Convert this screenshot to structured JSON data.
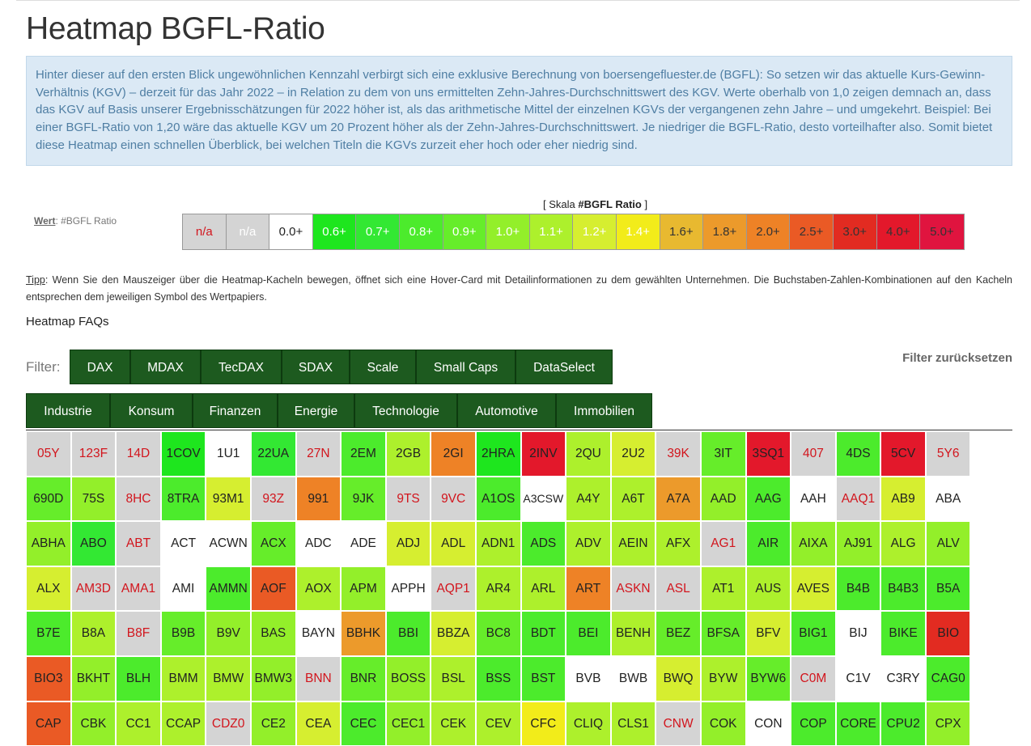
{
  "page": {
    "title": "Heatmap BGFL-Ratio",
    "info": "Hinter dieser auf den ersten Blick ungewöhnlichen Kennzahl verbirgt sich eine exklusive Berechnung von boersengefluester.de (BGFL): So setzen wir das aktuelle Kurs-Gewinn-Verhältnis (KGV) – derzeit für das Jahr 2022 – in Relation zu dem von uns ermittelten Zehn-Jahres-Durchschnittswert des KGV. Werte oberhalb von 1,0 zeigen demnach an, dass das KGV auf Basis unserer Ergebnisschätzungen für 2022 höher ist, als das arithmetische Mittel der einzelnen KGVs der vergangenen zehn Jahre – und umgekehrt. Beispiel: Bei einer BGFL-Ratio von 1,20 wäre das aktuelle KGV um 20 Prozent höher als der Zehn-Jahres-Durchschnittswert. Je niedriger die BGFL-Ratio, desto vorteilhafter also. Somit bietet diese Heatmap einen schnellen Überblick, bei welchen Titeln die KGVs zurzeit eher hoch oder eher niedrig sind."
  },
  "scale": {
    "prefix": "[ Skala ",
    "name": "#BGFL Ratio",
    "suffix": " ]",
    "wert_label": "Wert",
    "wert_value": ": #BGFL Ratio",
    "items": [
      {
        "label": "n/a",
        "bg": "#d4d4d4",
        "fg": "#d2151d"
      },
      {
        "label": "n/a",
        "bg": "#d4d4d4",
        "fg": "#ffffff"
      },
      {
        "label": "0.0+",
        "bg": "#ffffff",
        "fg": "#222222"
      },
      {
        "label": "0.6+",
        "bg": "#1ee61e",
        "fg": "#ffffff"
      },
      {
        "label": "0.7+",
        "bg": "#33e833",
        "fg": "#ffffff"
      },
      {
        "label": "0.8+",
        "bg": "#4ceb2c",
        "fg": "#ffffff"
      },
      {
        "label": "0.9+",
        "bg": "#66ed2a",
        "fg": "#ffffff"
      },
      {
        "label": "1.0+",
        "bg": "#93ef2a",
        "fg": "#ffffff"
      },
      {
        "label": "1.1+",
        "bg": "#adf02c",
        "fg": "#ffffff"
      },
      {
        "label": "1.2+",
        "bg": "#d6ee30",
        "fg": "#ffffff"
      },
      {
        "label": "1.4+",
        "bg": "#f2ec1a",
        "fg": "#ffffff"
      },
      {
        "label": "1.6+",
        "bg": "#e8b930",
        "fg": "#333333"
      },
      {
        "label": "1.8+",
        "bg": "#ec9a2b",
        "fg": "#333333"
      },
      {
        "label": "2.0+",
        "bg": "#ee8226",
        "fg": "#333333"
      },
      {
        "label": "2.5+",
        "bg": "#ea5a25",
        "fg": "#333333"
      },
      {
        "label": "3.0+",
        "bg": "#e22b21",
        "fg": "#333333"
      },
      {
        "label": "4.0+",
        "bg": "#e3182b",
        "fg": "#333333"
      },
      {
        "label": "5.0+",
        "bg": "#e0143f",
        "fg": "#333333"
      }
    ]
  },
  "tipp": {
    "label": "Tipp",
    "text": ": Wenn Sie den Mauszeiger über die Heatmap-Kacheln bewegen, öffnet sich eine Hover-Card mit Detailinformationen zu dem gewählten Unternehmen. Die Buchstaben-Zahlen-Kombinationen auf den Kacheln entsprechen dem jeweiligen Symbol des Wertpapiers."
  },
  "faq": "Heatmap FAQs",
  "filter": {
    "label": "Filter:",
    "reset": "Filter zurücksetzen",
    "indices": [
      "DAX",
      "MDAX",
      "TecDAX",
      "SDAX",
      "Scale",
      "Small Caps",
      "DataSelect"
    ],
    "sectors": [
      "Industrie",
      "Konsum",
      "Finanzen",
      "Energie",
      "Technologie",
      "Automotive",
      "Immobilien"
    ]
  },
  "colors": {
    "G0": "#1ee61e",
    "G1": "#33e833",
    "G2": "#4ceb2c",
    "G3": "#66ed2a",
    "L0": "#93ef2a",
    "L1": "#adf02c",
    "Y0": "#d6ee30",
    "Y1": "#f2ec1a",
    "O0": "#e8b930",
    "O1": "#ec9a2b",
    "O2": "#ee8226",
    "R0": "#ea5a25",
    "R1": "#e22b21",
    "R2": "#e3182b",
    "W": "#ffffff",
    "N": "#d4d4d4"
  },
  "tiles": [
    [
      "05Y",
      "N"
    ],
    [
      "123F",
      "N"
    ],
    [
      "14D",
      "N"
    ],
    [
      "1COV",
      "G0"
    ],
    [
      "1U1",
      "W"
    ],
    [
      "22UA",
      "G1"
    ],
    [
      "27N",
      "N"
    ],
    [
      "2EM",
      "G2"
    ],
    [
      "2GB",
      "L1"
    ],
    [
      "2GI",
      "O2"
    ],
    [
      "2HRA",
      "G0"
    ],
    [
      "2INV",
      "R2"
    ],
    [
      "2QU",
      "L1"
    ],
    [
      "2U2",
      "Y0"
    ],
    [
      "39K",
      "N"
    ],
    [
      "3IT",
      "G3"
    ],
    [
      "3SQ1",
      "R2"
    ],
    [
      "407",
      "N"
    ],
    [
      "4DS",
      "G2"
    ],
    [
      "5CV",
      "R2"
    ],
    [
      "5Y6",
      "N"
    ],
    [
      "690D",
      "G3"
    ],
    [
      "75S",
      "L0"
    ],
    [
      "8HC",
      "N"
    ],
    [
      "8TRA",
      "G2"
    ],
    [
      "93M1",
      "Y0"
    ],
    [
      "93Z",
      "N"
    ],
    [
      "991",
      "O2"
    ],
    [
      "9JK",
      "G3"
    ],
    [
      "9TS",
      "N"
    ],
    [
      "9VC",
      "N"
    ],
    [
      "A1OS",
      "G2"
    ],
    [
      "A3CSW",
      "W"
    ],
    [
      "A4Y",
      "L1"
    ],
    [
      "A6T",
      "L1"
    ],
    [
      "A7A",
      "O1"
    ],
    [
      "AAD",
      "L0"
    ],
    [
      "AAG",
      "G2"
    ],
    [
      "AAH",
      "W"
    ],
    [
      "AAQ1",
      "N"
    ],
    [
      "AB9",
      "Y0"
    ],
    [
      "ABA",
      "W"
    ],
    [
      "ABHA",
      "L0"
    ],
    [
      "ABO",
      "G1"
    ],
    [
      "ABT",
      "N"
    ],
    [
      "ACT",
      "W"
    ],
    [
      "ACWN",
      "W"
    ],
    [
      "ACX",
      "G3"
    ],
    [
      "ADC",
      "W"
    ],
    [
      "ADE",
      "W"
    ],
    [
      "ADJ",
      "Y0"
    ],
    [
      "ADL",
      "Y0"
    ],
    [
      "ADN1",
      "L1"
    ],
    [
      "ADS",
      "G2"
    ],
    [
      "ADV",
      "L1"
    ],
    [
      "AEIN",
      "L1"
    ],
    [
      "AFX",
      "L1"
    ],
    [
      "AG1",
      "N"
    ],
    [
      "AIR",
      "G2"
    ],
    [
      "AIXA",
      "L0"
    ],
    [
      "AJ91",
      "L0"
    ],
    [
      "ALG",
      "L1"
    ],
    [
      "ALV",
      "L0"
    ],
    [
      "ALX",
      "Y0"
    ],
    [
      "AM3D",
      "N"
    ],
    [
      "AMA1",
      "N"
    ],
    [
      "AMI",
      "W"
    ],
    [
      "AMMN",
      "G2"
    ],
    [
      "AOF",
      "R0"
    ],
    [
      "AOX",
      "L1"
    ],
    [
      "APM",
      "L0"
    ],
    [
      "APPH",
      "W"
    ],
    [
      "AQP1",
      "N"
    ],
    [
      "AR4",
      "L1"
    ],
    [
      "ARL",
      "L1"
    ],
    [
      "ART",
      "O2"
    ],
    [
      "ASKN",
      "N"
    ],
    [
      "ASL",
      "N"
    ],
    [
      "AT1",
      "L1"
    ],
    [
      "AUS",
      "L1"
    ],
    [
      "AVES",
      "Y0"
    ],
    [
      "B4B",
      "G2"
    ],
    [
      "B4B3",
      "G2"
    ],
    [
      "B5A",
      "G2"
    ],
    [
      "B7E",
      "G2"
    ],
    [
      "B8A",
      "L1"
    ],
    [
      "B8F",
      "N"
    ],
    [
      "B9B",
      "G3"
    ],
    [
      "B9V",
      "L0"
    ],
    [
      "BAS",
      "L0"
    ],
    [
      "BAYN",
      "W"
    ],
    [
      "BBHK",
      "O1"
    ],
    [
      "BBI",
      "G2"
    ],
    [
      "BBZA",
      "Y0"
    ],
    [
      "BC8",
      "G3"
    ],
    [
      "BDT",
      "G2"
    ],
    [
      "BEI",
      "G2"
    ],
    [
      "BENH",
      "L1"
    ],
    [
      "BEZ",
      "G3"
    ],
    [
      "BFSA",
      "G3"
    ],
    [
      "BFV",
      "Y0"
    ],
    [
      "BIG1",
      "G2"
    ],
    [
      "BIJ",
      "W"
    ],
    [
      "BIKE",
      "G2"
    ],
    [
      "BIO",
      "R1"
    ],
    [
      "BIO3",
      "R0"
    ],
    [
      "BKHT",
      "L0"
    ],
    [
      "BLH",
      "G2"
    ],
    [
      "BMM",
      "L1"
    ],
    [
      "BMW",
      "L1"
    ],
    [
      "BMW3",
      "L0"
    ],
    [
      "BNN",
      "N"
    ],
    [
      "BNR",
      "G3"
    ],
    [
      "BOSS",
      "L0"
    ],
    [
      "BSL",
      "L1"
    ],
    [
      "BSS",
      "G2"
    ],
    [
      "BST",
      "G2"
    ],
    [
      "BVB",
      "W"
    ],
    [
      "BWB",
      "W"
    ],
    [
      "BWQ",
      "Y0"
    ],
    [
      "BYW",
      "L1"
    ],
    [
      "BYW6",
      "G3"
    ],
    [
      "C0M",
      "N"
    ],
    [
      "C1V",
      "W"
    ],
    [
      "C3RY",
      "W"
    ],
    [
      "CAG0",
      "G2"
    ],
    [
      "CAP",
      "R0"
    ],
    [
      "CBK",
      "L0"
    ],
    [
      "CC1",
      "L1"
    ],
    [
      "CCAP",
      "L1"
    ],
    [
      "CDZ0",
      "N"
    ],
    [
      "CE2",
      "L0"
    ],
    [
      "CEA",
      "Y0"
    ],
    [
      "CEC",
      "G2"
    ],
    [
      "CEC1",
      "L0"
    ],
    [
      "CEK",
      "L1"
    ],
    [
      "CEV",
      "L1"
    ],
    [
      "CFC",
      "Y1"
    ],
    [
      "CLIQ",
      "L1"
    ],
    [
      "CLS1",
      "L1"
    ],
    [
      "CNW",
      "N"
    ],
    [
      "COK",
      "L0"
    ],
    [
      "CON",
      "W"
    ],
    [
      "COP",
      "G2"
    ],
    [
      "CORE",
      "G2"
    ],
    [
      "CPU2",
      "G2"
    ],
    [
      "CPX",
      "L0"
    ]
  ]
}
